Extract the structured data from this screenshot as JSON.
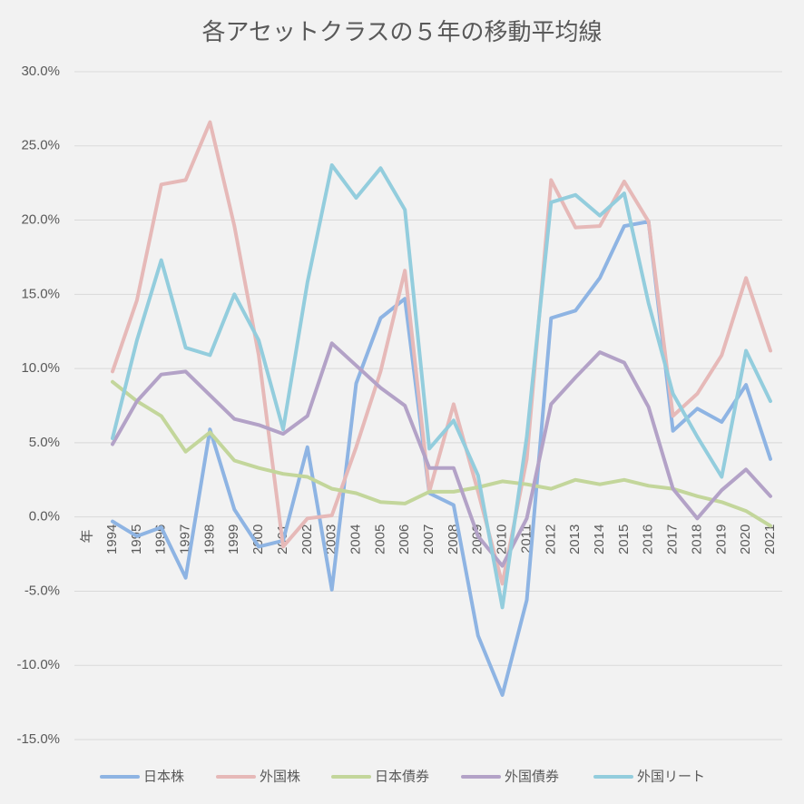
{
  "chart_data": {
    "type": "line",
    "title": "各アセットクラスの５年の移動平均線",
    "xlabel": "年",
    "ylabel": "",
    "ylim": [
      -15,
      30
    ],
    "ytick_step": 5,
    "ytick_labels": [
      "30.0%",
      "25.0%",
      "20.0%",
      "15.0%",
      "10.0%",
      "5.0%",
      "0.0%",
      "-5.0%",
      "-10.0%",
      "-15.0%"
    ],
    "grid": true,
    "legend_position": "bottom",
    "categories": [
      "1994",
      "1995",
      "1996",
      "1997",
      "1998",
      "1999",
      "2000",
      "2001",
      "2002",
      "2003",
      "2004",
      "2005",
      "2006",
      "2007",
      "2008",
      "2009",
      "2010",
      "2011",
      "2012",
      "2013",
      "2014",
      "2015",
      "2016",
      "2017",
      "2018",
      "2019",
      "2020",
      "2021"
    ],
    "series": [
      {
        "name": "日本株",
        "color": "#8eb4e3",
        "values": [
          -0.3,
          -1.3,
          -0.7,
          -4.1,
          5.9,
          0.5,
          -2.0,
          -1.6,
          4.7,
          -4.9,
          9.0,
          13.4,
          14.7,
          1.6,
          0.8,
          -8.0,
          -12.0,
          -5.6,
          13.4,
          13.9,
          16.1,
          19.6,
          19.9,
          5.8,
          7.3,
          6.4,
          8.9,
          3.9
        ]
      },
      {
        "name": "外国株",
        "color": "#e6b9b8",
        "values": [
          9.8,
          14.6,
          22.4,
          22.7,
          26.6,
          19.6,
          10.9,
          -2.0,
          -0.1,
          0.1,
          4.7,
          9.8,
          16.6,
          1.7,
          7.6,
          1.7,
          -4.5,
          3.9,
          22.7,
          19.5,
          19.6,
          22.6,
          19.9,
          6.8,
          8.3,
          10.9,
          16.1,
          11.2
        ]
      },
      {
        "name": "日本債券",
        "color": "#c3d69b",
        "values": [
          9.1,
          7.8,
          6.8,
          4.4,
          5.7,
          3.8,
          3.3,
          2.9,
          2.7,
          1.9,
          1.6,
          1.0,
          0.9,
          1.7,
          1.7,
          2.0,
          2.4,
          2.2,
          1.9,
          2.5,
          2.2,
          2.5,
          2.1,
          1.9,
          1.4,
          1.0,
          0.4,
          -0.6
        ]
      },
      {
        "name": "外国債券",
        "color": "#b3a2c7",
        "values": [
          4.9,
          7.8,
          9.6,
          9.8,
          8.2,
          6.6,
          6.2,
          5.6,
          6.8,
          11.7,
          10.2,
          8.7,
          7.5,
          3.3,
          3.3,
          -1.3,
          -3.3,
          -0.1,
          7.6,
          9.4,
          11.1,
          10.4,
          7.4,
          1.9,
          -0.1,
          1.8,
          3.2,
          1.4
        ]
      },
      {
        "name": "外国リート",
        "color": "#93cddd",
        "values": [
          5.3,
          11.9,
          17.3,
          11.4,
          10.9,
          15.0,
          11.9,
          5.9,
          15.8,
          23.7,
          21.5,
          23.5,
          20.7,
          4.6,
          6.5,
          2.8,
          -6.1,
          5.4,
          21.2,
          21.7,
          20.3,
          21.8,
          14.4,
          8.3,
          5.4,
          2.7,
          11.2,
          7.8
        ]
      }
    ]
  }
}
